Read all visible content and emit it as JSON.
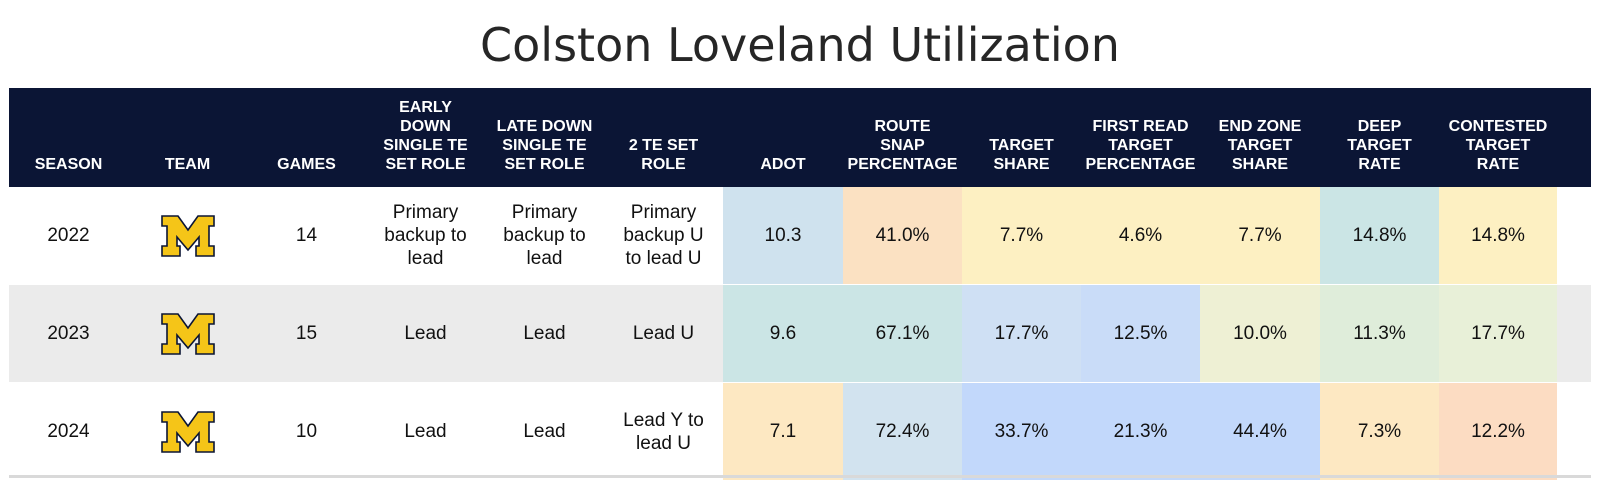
{
  "title": "Colston Loveland Utilization",
  "columns": [
    "SEASON",
    "TEAM",
    "GAMES",
    "EARLY DOWN SINGLE TE SET ROLE",
    "LATE DOWN SINGLE TE SET ROLE",
    "2 TE SET ROLE",
    "ADOT",
    "ROUTE SNAP PERCENTAGE",
    "TARGET SHARE",
    "FIRST READ TARGET PERCENTAGE",
    "END ZONE TARGET SHARE",
    "DEEP TARGET RATE",
    "CONTESTED TARGET RATE"
  ],
  "header_lines": [
    "SEASON",
    "TEAM",
    "GAMES",
    "EARLY\nDOWN\nSINGLE TE\nSET ROLE",
    "LATE DOWN\nSINGLE TE\nSET ROLE",
    "2 TE SET\nROLE",
    "ADOT",
    "ROUTE\nSNAP\nPERCENTAGE",
    "TARGET\nSHARE",
    "FIRST READ\nTARGET\nPERCENTAGE",
    "END ZONE\nTARGET\nSHARE",
    "DEEP\nTARGET\nRATE",
    "CONTESTED\nTARGET\nRATE"
  ],
  "team_logo": {
    "icon": "michigan-block-m-icon",
    "fill": "#f5c518",
    "stroke": "#0b1535"
  },
  "colors": {
    "header_bg": "#0b1535",
    "row_shade": "#ebebeb"
  },
  "rows": [
    {
      "season": "2022",
      "team": "",
      "games": "14",
      "early_down": "Primary\nbackup to\nlead",
      "late_down": "Primary\nbackup to\nlead",
      "two_te": "Primary\nbackup U\nto lead U",
      "adot": "10.3",
      "route_snap": "41.0%",
      "target_share": "7.7%",
      "first_read": "4.6%",
      "end_zone": "7.7%",
      "deep": "14.8%",
      "contested": "14.8%",
      "shade": false,
      "colors": [
        "#cfe2ee",
        "#fbe1c2",
        "#fdf0c2",
        "#fdf0c2",
        "#fdf0c2",
        "#cbe5e5",
        "#fdf0c2"
      ]
    },
    {
      "season": "2023",
      "team": "",
      "games": "15",
      "early_down": "Lead",
      "late_down": "Lead",
      "two_te": "Lead U",
      "adot": "9.6",
      "route_snap": "67.1%",
      "target_share": "17.7%",
      "first_read": "12.5%",
      "end_zone": "10.0%",
      "deep": "11.3%",
      "contested": "17.7%",
      "shade": true,
      "colors": [
        "#cbe5e5",
        "#cbe5e5",
        "#cfe0f4",
        "#c9dcf8",
        "#eef0d4",
        "#dfedda",
        "#e8f0d8"
      ]
    },
    {
      "season": "2024",
      "team": "",
      "games": "10",
      "early_down": "Lead",
      "late_down": "Lead",
      "two_te": "Lead Y to\nlead U",
      "adot": "7.1",
      "route_snap": "72.4%",
      "target_share": "33.7%",
      "first_read": "21.3%",
      "end_zone": "44.4%",
      "deep": "7.3%",
      "contested": "12.2%",
      "shade": false,
      "colors": [
        "#fde8c2",
        "#d2e3ef",
        "#c2d8fb",
        "#c2d8fb",
        "#c2d8fb",
        "#fde8c2",
        "#fcdcc2"
      ]
    }
  ],
  "chart_data": {
    "type": "table",
    "title": "Colston Loveland Utilization",
    "columns": [
      "SEASON",
      "TEAM",
      "GAMES",
      "EARLY DOWN SINGLE TE SET ROLE",
      "LATE DOWN SINGLE TE SET ROLE",
      "2 TE SET ROLE",
      "ADOT",
      "ROUTE SNAP PERCENTAGE",
      "TARGET SHARE",
      "FIRST READ TARGET PERCENTAGE",
      "END ZONE TARGET SHARE",
      "DEEP TARGET RATE",
      "CONTESTED TARGET RATE"
    ],
    "rows": [
      [
        "2022",
        "Michigan",
        14,
        "Primary backup to lead",
        "Primary backup to lead",
        "Primary backup U to lead U",
        10.3,
        41.0,
        7.7,
        4.6,
        7.7,
        14.8,
        14.8
      ],
      [
        "2023",
        "Michigan",
        15,
        "Lead",
        "Lead",
        "Lead U",
        9.6,
        67.1,
        17.7,
        12.5,
        10.0,
        11.3,
        17.7
      ],
      [
        "2024",
        "Michigan",
        10,
        "Lead",
        "Lead",
        "Lead Y to lead U",
        7.1,
        72.4,
        33.7,
        21.3,
        44.4,
        7.3,
        12.2
      ]
    ]
  }
}
